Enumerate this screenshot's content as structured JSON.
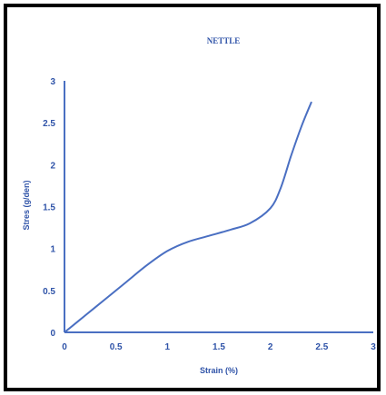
{
  "chart_data": {
    "type": "line",
    "title": "NETTLE",
    "xlabel": "Strain (%)",
    "ylabel": "Stres (g/den)",
    "xlim": [
      0,
      3
    ],
    "ylim": [
      0,
      3
    ],
    "xticks": [
      "0",
      "0.5",
      "1",
      "1.5",
      "2",
      "2.5",
      "3"
    ],
    "yticks": [
      "0",
      "0.5",
      "1",
      "1.5",
      "2",
      "2.5",
      "3"
    ],
    "grid": false,
    "legend": "none",
    "colors": {
      "line": "#4a6fc2",
      "axis": "#4a6fc2",
      "text": "#2f53a8",
      "border": "#000000"
    },
    "series": [
      {
        "x": [
          0,
          0.2,
          0.4,
          0.6,
          0.8,
          1.0,
          1.2,
          1.4,
          1.6,
          1.8,
          2.0,
          2.1,
          2.2,
          2.3,
          2.4
        ],
        "y": [
          0,
          0.2,
          0.4,
          0.6,
          0.8,
          0.97,
          1.08,
          1.15,
          1.22,
          1.3,
          1.48,
          1.72,
          2.1,
          2.45,
          2.75
        ]
      }
    ]
  }
}
